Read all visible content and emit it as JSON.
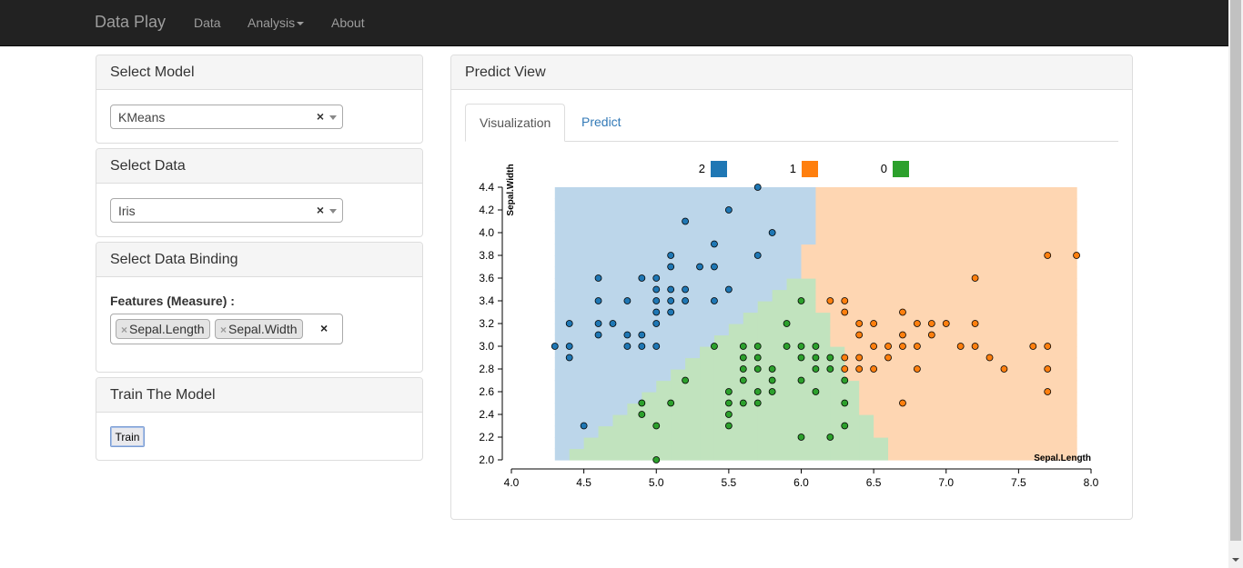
{
  "navbar": {
    "brand": "Data Play",
    "links": [
      "Data",
      "Analysis",
      "About"
    ]
  },
  "select_model": {
    "title": "Select Model",
    "value": "KMeans",
    "clear": "×"
  },
  "select_data": {
    "title": "Select Data",
    "value": "Iris",
    "clear": "×"
  },
  "data_binding": {
    "title": "Select Data Binding",
    "features_label": "Features (Measure) :",
    "chips": [
      "Sepal.Length",
      "Sepal.Width"
    ],
    "chip_remove": "×",
    "clear": "×"
  },
  "train": {
    "title": "Train The Model",
    "button": "Train"
  },
  "predict_view": {
    "title": "Predict View",
    "tabs": [
      "Visualization",
      "Predict"
    ]
  },
  "colors": {
    "cluster_2": "#1f77b4",
    "cluster_1": "#ff7f0e",
    "cluster_0": "#2ca02c",
    "region_2": "#bcd6ea",
    "region_1": "#fed6b2",
    "region_0": "#c1e3be"
  },
  "chart_data": {
    "type": "scatter",
    "xlabel": "Sepal.Length",
    "ylabel": "Sepal.Width",
    "xlim": [
      4.0,
      8.0
    ],
    "ylim": [
      2.0,
      4.4
    ],
    "xticks": [
      "4.0",
      "4.5",
      "5.0",
      "5.5",
      "6.0",
      "6.5",
      "7.0",
      "7.5",
      "8.0"
    ],
    "yticks": [
      "2.0",
      "2.2",
      "2.4",
      "2.6",
      "2.8",
      "3.0",
      "3.2",
      "3.4",
      "3.6",
      "3.8",
      "4.0",
      "4.2",
      "4.4"
    ],
    "legend": [
      "2",
      "1",
      "0"
    ],
    "legend_position": "top",
    "grid": false,
    "series": [
      {
        "name": "2",
        "points": [
          [
            4.3,
            3.0
          ],
          [
            4.4,
            3.0
          ],
          [
            4.4,
            2.9
          ],
          [
            4.4,
            3.2
          ],
          [
            4.5,
            2.3
          ],
          [
            4.6,
            3.1
          ],
          [
            4.6,
            3.2
          ],
          [
            4.6,
            3.4
          ],
          [
            4.6,
            3.6
          ],
          [
            4.7,
            3.2
          ],
          [
            4.8,
            3.0
          ],
          [
            4.8,
            3.1
          ],
          [
            4.8,
            3.4
          ],
          [
            4.9,
            3.0
          ],
          [
            4.9,
            3.1
          ],
          [
            4.9,
            3.6
          ],
          [
            5.0,
            3.0
          ],
          [
            5.0,
            3.2
          ],
          [
            5.0,
            3.3
          ],
          [
            5.0,
            3.4
          ],
          [
            5.0,
            3.5
          ],
          [
            5.0,
            3.6
          ],
          [
            5.1,
            3.3
          ],
          [
            5.1,
            3.4
          ],
          [
            5.1,
            3.5
          ],
          [
            5.1,
            3.7
          ],
          [
            5.1,
            3.8
          ],
          [
            5.2,
            3.4
          ],
          [
            5.2,
            3.5
          ],
          [
            5.2,
            4.1
          ],
          [
            5.3,
            3.7
          ],
          [
            5.4,
            3.4
          ],
          [
            5.4,
            3.7
          ],
          [
            5.4,
            3.9
          ],
          [
            5.5,
            3.5
          ],
          [
            5.5,
            4.2
          ],
          [
            5.7,
            3.8
          ],
          [
            5.7,
            4.4
          ],
          [
            5.8,
            4.0
          ]
        ]
      },
      {
        "name": "1",
        "points": [
          [
            6.2,
            3.4
          ],
          [
            6.3,
            3.3
          ],
          [
            6.3,
            3.4
          ],
          [
            6.3,
            2.9
          ],
          [
            6.3,
            2.8
          ],
          [
            6.4,
            3.2
          ],
          [
            6.4,
            3.1
          ],
          [
            6.4,
            2.9
          ],
          [
            6.4,
            2.8
          ],
          [
            6.5,
            3.0
          ],
          [
            6.5,
            3.2
          ],
          [
            6.5,
            2.8
          ],
          [
            6.6,
            3.0
          ],
          [
            6.6,
            2.9
          ],
          [
            6.7,
            3.0
          ],
          [
            6.7,
            3.1
          ],
          [
            6.7,
            3.3
          ],
          [
            6.7,
            2.5
          ],
          [
            6.8,
            3.0
          ],
          [
            6.8,
            3.2
          ],
          [
            6.8,
            2.8
          ],
          [
            6.9,
            3.1
          ],
          [
            6.9,
            3.2
          ],
          [
            7.0,
            3.2
          ],
          [
            7.1,
            3.0
          ],
          [
            7.2,
            3.0
          ],
          [
            7.2,
            3.2
          ],
          [
            7.2,
            3.6
          ],
          [
            7.3,
            2.9
          ],
          [
            7.4,
            2.8
          ],
          [
            7.6,
            3.0
          ],
          [
            7.7,
            3.8
          ],
          [
            7.7,
            3.0
          ],
          [
            7.7,
            2.8
          ],
          [
            7.7,
            2.6
          ],
          [
            7.9,
            3.8
          ]
        ]
      },
      {
        "name": "0",
        "points": [
          [
            4.9,
            2.4
          ],
          [
            4.9,
            2.5
          ],
          [
            5.0,
            2.0
          ],
          [
            5.0,
            2.3
          ],
          [
            5.1,
            2.5
          ],
          [
            5.2,
            2.7
          ],
          [
            5.4,
            3.0
          ],
          [
            5.5,
            2.3
          ],
          [
            5.5,
            2.4
          ],
          [
            5.5,
            2.5
          ],
          [
            5.5,
            2.6
          ],
          [
            5.6,
            2.5
          ],
          [
            5.6,
            2.7
          ],
          [
            5.6,
            2.8
          ],
          [
            5.6,
            2.9
          ],
          [
            5.6,
            3.0
          ],
          [
            5.7,
            2.5
          ],
          [
            5.7,
            2.6
          ],
          [
            5.7,
            2.8
          ],
          [
            5.7,
            2.9
          ],
          [
            5.7,
            3.0
          ],
          [
            5.8,
            2.6
          ],
          [
            5.8,
            2.7
          ],
          [
            5.8,
            2.8
          ],
          [
            5.9,
            3.0
          ],
          [
            5.9,
            3.2
          ],
          [
            6.0,
            2.2
          ],
          [
            6.0,
            2.7
          ],
          [
            6.0,
            2.9
          ],
          [
            6.0,
            3.0
          ],
          [
            6.0,
            3.4
          ],
          [
            6.1,
            2.6
          ],
          [
            6.1,
            2.8
          ],
          [
            6.1,
            2.9
          ],
          [
            6.1,
            3.0
          ],
          [
            6.2,
            2.2
          ],
          [
            6.2,
            2.8
          ],
          [
            6.2,
            2.9
          ],
          [
            6.3,
            2.3
          ],
          [
            6.3,
            2.5
          ],
          [
            6.3,
            2.7
          ]
        ]
      }
    ]
  }
}
